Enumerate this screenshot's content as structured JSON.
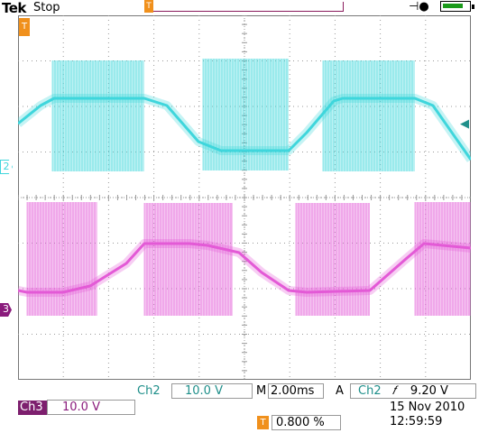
{
  "header": {
    "brand": "Tek",
    "acquisition_state": "Stop",
    "trigger_position_glyph": "T",
    "power_icon": "power-plug-icon",
    "battery_level": 0.8
  },
  "colors": {
    "ch2": "#3fd6dc",
    "ch3": "#e35ad6",
    "trigger": "#f0901c",
    "grid": "#9a9a9a"
  },
  "screen": {
    "ch2_marker": "2",
    "ch3_marker": "3",
    "trigger_marker": "T",
    "trigger_level_glyph": "◀"
  },
  "readouts": {
    "ch2_label": "Ch2",
    "ch2_scale": "10.0 V",
    "timebase_mode": "M",
    "timebase": "2.00ms",
    "trigger_mode": "A",
    "trigger_source": "Ch2",
    "trigger_slope_glyph": "𝑓",
    "trigger_level": "9.20 V",
    "ch3_label": "Ch3",
    "ch3_scale": "10.0 V",
    "trigger_pos_glyph": "T",
    "trigger_position": "0.800 %",
    "date": "15 Nov 2010",
    "time": "12:59:59"
  }
}
